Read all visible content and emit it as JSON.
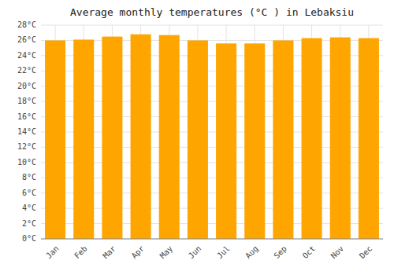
{
  "chart_data": {
    "type": "bar",
    "title": "Average monthly temperatures (°C ) in Lebaksiu",
    "categories": [
      "Jan",
      "Feb",
      "Mar",
      "Apr",
      "May",
      "Jun",
      "Jul",
      "Aug",
      "Sep",
      "Oct",
      "Nov",
      "Dec"
    ],
    "values": [
      26.0,
      26.1,
      26.5,
      26.8,
      26.7,
      26.0,
      25.6,
      25.6,
      26.0,
      26.3,
      26.4,
      26.3
    ],
    "color": "#FFA500",
    "ylim": [
      0,
      28
    ],
    "yticks": [
      {
        "value": 0,
        "label": "0°C"
      },
      {
        "value": 2,
        "label": "2°C"
      },
      {
        "value": 4,
        "label": "4°C"
      },
      {
        "value": 6,
        "label": "6°C"
      },
      {
        "value": 8,
        "label": "8°C"
      },
      {
        "value": 10,
        "label": "10°C"
      },
      {
        "value": 12,
        "label": "12°C"
      },
      {
        "value": 14,
        "label": "14°C"
      },
      {
        "value": 16,
        "label": "16°C"
      },
      {
        "value": 18,
        "label": "18°C"
      },
      {
        "value": 20,
        "label": "20°C"
      },
      {
        "value": 22,
        "label": "22°C"
      },
      {
        "value": 24,
        "label": "24°C"
      },
      {
        "value": 26,
        "label": "26°C"
      },
      {
        "value": 28,
        "label": "28°C"
      }
    ],
    "grid": true
  }
}
